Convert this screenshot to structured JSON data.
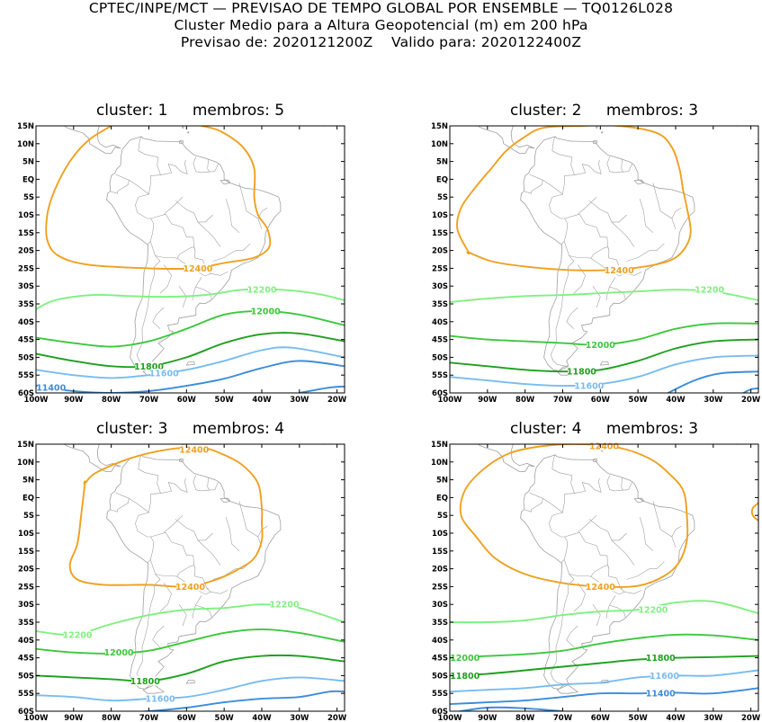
{
  "header": {
    "line1": "CPTEC/INPE/MCT — PREVISAO DE TEMPO GLOBAL POR ENSEMBLE — TQ0126L028",
    "line2": "Cluster Medio para a Altura Geopotencial (m) em 200 hPa",
    "line3": "Previsao de: 2020121200Z    Valido para: 2020122400Z"
  },
  "axes": {
    "lat_labels": [
      "15N",
      "10N",
      "5N",
      "EQ",
      "5S",
      "10S",
      "15S",
      "20S",
      "25S",
      "30S",
      "35S",
      "40S",
      "45S",
      "50S",
      "55S",
      "60S"
    ],
    "lon_labels": [
      "100W",
      "90W",
      "80W",
      "70W",
      "60W",
      "50W",
      "40W",
      "30W",
      "20W"
    ],
    "lon_range": [
      -100,
      -18
    ],
    "lat_range": [
      -60,
      15
    ]
  },
  "colors": {
    "c12400": "#f0a020",
    "c12200": "#80f080",
    "c12000": "#3cc83c",
    "c11800": "#1ea01e",
    "c11600": "#78bcf0",
    "c11400": "#3c8cdc",
    "coast": "#a0a0a0"
  },
  "panels": [
    {
      "cluster_label": "cluster:",
      "cluster": "1",
      "membros_label": "membros:",
      "membros": "5",
      "contour_labels": [
        {
          "value": "12400",
          "lon": -57,
          "lat": -25
        },
        {
          "value": "12200",
          "lon": -40,
          "lat": -31
        },
        {
          "value": "12000",
          "lon": -39,
          "lat": -37
        },
        {
          "value": "11800",
          "lon": -70,
          "lat": -52.5
        },
        {
          "value": "11600",
          "lon": -66,
          "lat": -54.5
        },
        {
          "value": "11400",
          "lon": -96,
          "lat": -58.5
        }
      ]
    },
    {
      "cluster_label": "cluster:",
      "cluster": "2",
      "membros_label": "membros:",
      "membros": "3",
      "contour_labels": [
        {
          "value": "12400",
          "lon": -55,
          "lat": -25.5
        },
        {
          "value": "12200",
          "lon": -31,
          "lat": -31
        },
        {
          "value": "12000",
          "lon": -60,
          "lat": -46.5
        },
        {
          "value": "11800",
          "lon": -65,
          "lat": -54
        },
        {
          "value": "11600",
          "lon": -63,
          "lat": -58
        }
      ]
    },
    {
      "cluster_label": "cluster:",
      "cluster": "3",
      "membros_label": "membros:",
      "membros": "4",
      "contour_labels": [
        {
          "value": "12400",
          "lon": -58,
          "lat": 13.5
        },
        {
          "value": "12400",
          "lon": -59,
          "lat": -25
        },
        {
          "value": "12200",
          "lon": -34,
          "lat": -30
        },
        {
          "value": "12200",
          "lon": -89,
          "lat": -38.5
        },
        {
          "value": "12000",
          "lon": -78,
          "lat": -43.5
        },
        {
          "value": "11800",
          "lon": -71,
          "lat": -51.5
        },
        {
          "value": "11600",
          "lon": -67,
          "lat": -56.5
        }
      ]
    },
    {
      "cluster_label": "cluster:",
      "cluster": "4",
      "membros_label": "membros:",
      "membros": "3",
      "contour_labels": [
        {
          "value": "12400",
          "lon": -59,
          "lat": 14.5
        },
        {
          "value": "12400",
          "lon": -60,
          "lat": -25
        },
        {
          "value": "12200",
          "lon": -46,
          "lat": -31.5
        },
        {
          "value": "12000",
          "lon": -96,
          "lat": -45
        },
        {
          "value": "11800",
          "lon": -44,
          "lat": -45
        },
        {
          "value": "11800",
          "lon": -96,
          "lat": -50
        },
        {
          "value": "11600",
          "lon": -43,
          "lat": -50
        },
        {
          "value": "11400",
          "lon": -44,
          "lat": -55
        }
      ]
    }
  ]
}
